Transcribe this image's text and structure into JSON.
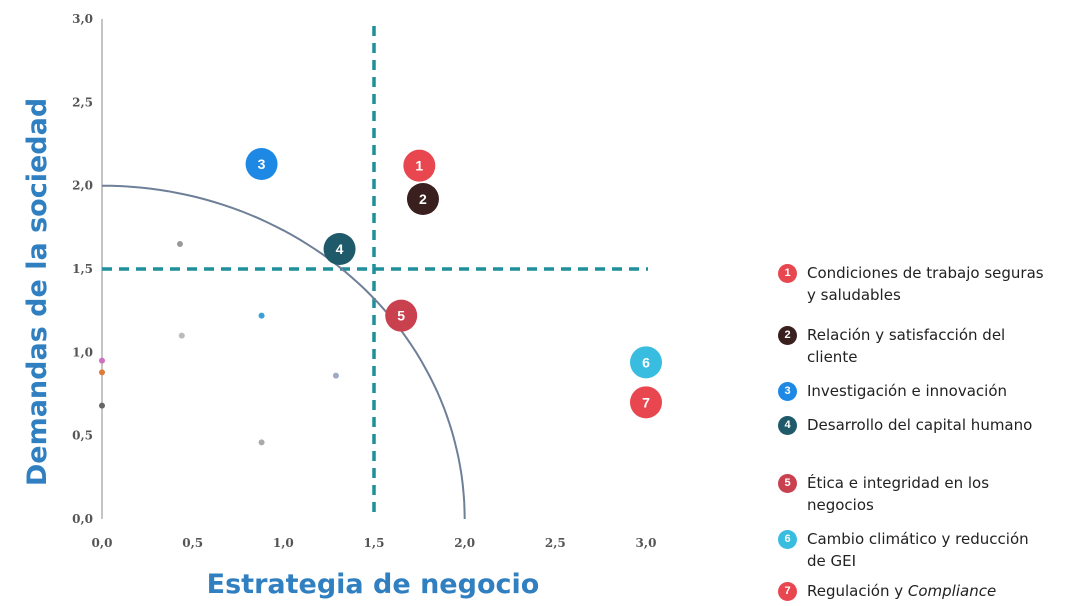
{
  "chart_data": {
    "type": "scatter",
    "xlabel": "Estrategia de negocio",
    "ylabel": "Demandas de la sociedad",
    "xlim": [
      0,
      3.0
    ],
    "ylim": [
      0,
      3.0
    ],
    "xticks": [
      "0,0",
      "0,5",
      "1,0",
      "1,5",
      "2,0",
      "2,5",
      "3,0"
    ],
    "yticks": [
      "0,0",
      "0,5",
      "1,0",
      "1,5",
      "2,0",
      "2,5",
      "3,0"
    ],
    "threshold_x": 1.5,
    "threshold_y": 1.5,
    "arc_radius": 2.0,
    "points": [
      {
        "id": "1",
        "label": "1",
        "x": 1.75,
        "y": 2.12,
        "color": "#e8474f"
      },
      {
        "id": "2",
        "label": "2",
        "x": 1.77,
        "y": 1.92,
        "color": "#3a1f1f"
      },
      {
        "id": "3",
        "label": "3",
        "x": 0.88,
        "y": 2.13,
        "color": "#1e88e5"
      },
      {
        "id": "4",
        "label": "4",
        "x": 1.31,
        "y": 1.62,
        "color": "#1e5a6a"
      },
      {
        "id": "5",
        "label": "5",
        "x": 1.65,
        "y": 1.22,
        "color": "#c9414f"
      },
      {
        "id": "6",
        "label": "6",
        "x": 3.0,
        "y": 0.94,
        "color": "#38bde0"
      },
      {
        "id": "7",
        "label": "7",
        "x": 3.0,
        "y": 0.7,
        "color": "#e8474f"
      }
    ],
    "small_marks": [
      {
        "x": 0.43,
        "y": 1.65,
        "color": "#999999"
      },
      {
        "x": 0.88,
        "y": 1.22,
        "color": "#3aa0d8"
      },
      {
        "x": 0.44,
        "y": 1.1,
        "color": "#bbbbbb"
      },
      {
        "x": 1.29,
        "y": 0.86,
        "color": "#a0a8c8"
      },
      {
        "x": 0.88,
        "y": 0.46,
        "color": "#aaaaaa"
      },
      {
        "x": 0.0,
        "y": 0.95,
        "color": "#d070c0"
      },
      {
        "x": 0.0,
        "y": 0.88,
        "color": "#e07a3a"
      },
      {
        "x": 0.0,
        "y": 0.68,
        "color": "#666666"
      }
    ]
  },
  "legend": [
    {
      "number": "1",
      "color": "#e8474f",
      "text": "Condiciones de trabajo seguras y saludables",
      "italic": ""
    },
    {
      "number": "2",
      "color": "#3a1f1f",
      "text": "Relación y satisfacción del cliente",
      "italic": ""
    },
    {
      "number": "3",
      "color": "#1e88e5",
      "text": "Investigación e innovación",
      "italic": ""
    },
    {
      "number": "4",
      "color": "#1e5a6a",
      "text": "Desarrollo del capital humano",
      "italic": ""
    },
    {
      "number": "5",
      "color": "#c9414f",
      "text": "Ética e integridad en los negocios",
      "italic": ""
    },
    {
      "number": "6",
      "color": "#38bde0",
      "text": "Cambio climático y reducción de GEI",
      "italic": ""
    },
    {
      "number": "7",
      "color": "#e8474f",
      "text": "Regulación y ",
      "italic": "Compliance"
    }
  ],
  "colors": {
    "axis_label": "#2f7fc1",
    "threshold": "#1f8f9a",
    "arc": "#6e7f98",
    "axis": "#b0b0b0"
  }
}
